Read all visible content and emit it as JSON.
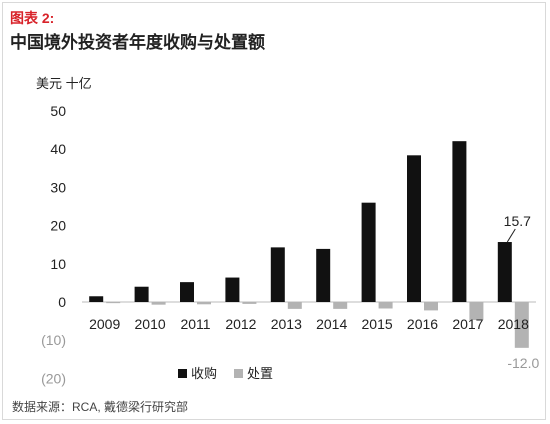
{
  "figure_label": "图表 2:",
  "title": "中国境外投资者年度收购与处置额",
  "source": "数据来源：RCA, 戴德梁行研究部",
  "colors": {
    "acquisition": "#111111",
    "disposal": "#b3b3b3",
    "label_red": "#d8232a"
  },
  "chart_data": {
    "type": "bar",
    "unit_label": "美元 十亿",
    "categories": [
      "2009",
      "2010",
      "2011",
      "2012",
      "2013",
      "2014",
      "2015",
      "2016",
      "2017",
      "2018"
    ],
    "series": [
      {
        "name": "收购",
        "values": [
          1.5,
          4.0,
          5.2,
          6.4,
          14.3,
          13.9,
          26.0,
          38.4,
          42.1,
          15.7
        ]
      },
      {
        "name": "处置",
        "values": [
          -0.3,
          -0.7,
          -0.6,
          -0.5,
          -1.8,
          -1.8,
          -1.7,
          -2.2,
          -4.7,
          -12.0
        ]
      }
    ],
    "yticks": [
      {
        "value": 50,
        "label": "50"
      },
      {
        "value": 40,
        "label": "40"
      },
      {
        "value": 30,
        "label": "30"
      },
      {
        "value": 20,
        "label": "20"
      },
      {
        "value": 10,
        "label": "10"
      },
      {
        "value": 0,
        "label": "0"
      },
      {
        "value": -10,
        "label": "(10)"
      },
      {
        "value": -20,
        "label": "(20)"
      }
    ],
    "ylim": [
      -20,
      50
    ],
    "annotations": [
      {
        "label": "15.7",
        "series": 0,
        "category": "2018"
      },
      {
        "label": "-12.0",
        "series": 1,
        "category": "2018"
      }
    ],
    "legend_position": "bottom-center"
  }
}
